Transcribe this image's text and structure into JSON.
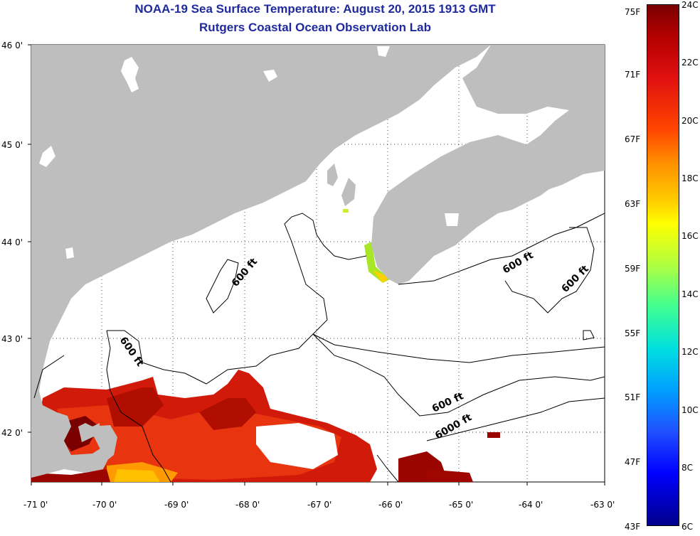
{
  "title": {
    "line1": "NOAA-19 Sea Surface Temperature:  August 20, 2015 1913 GMT",
    "line2": "Rutgers Coastal Ocean Observation Lab"
  },
  "map": {
    "lat_labels": [
      "46 0'",
      "45 0'",
      "44 0'",
      "43 0'",
      "42 0'"
    ],
    "lon_labels": [
      "-71 0'",
      "-70 0'",
      "-69 0'",
      "-68 0'",
      "-67 0'",
      "-66 0'",
      "-65 0'",
      "-64 0'",
      "-63 0'"
    ],
    "contour_labels": [
      "600 ft",
      "600 ft",
      "600 ft",
      "600 ft",
      "600 ft",
      "6000 ft"
    ],
    "colors": {
      "land": "#bebebe",
      "ocean": "#ffffff",
      "contour": "#000000"
    }
  },
  "colorbar": {
    "fahrenheit": [
      "75F",
      "71F",
      "67F",
      "63F",
      "59F",
      "55F",
      "51F",
      "47F",
      "43F"
    ],
    "celsius": [
      "24C",
      "22C",
      "20C",
      "18C",
      "16C",
      "14C",
      "12C",
      "10C",
      "8C",
      "6C"
    ]
  }
}
